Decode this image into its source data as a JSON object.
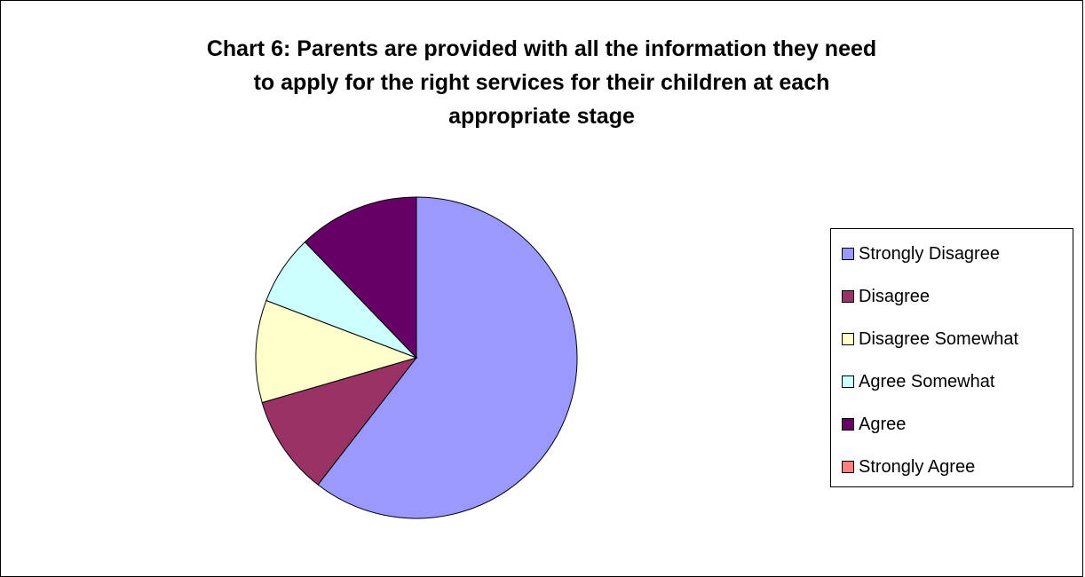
{
  "chart_data": {
    "type": "pie",
    "title_lines": [
      "Chart 6: Parents are provided with all the information they need",
      "to apply for the right services for their children at each",
      "appropriate stage"
    ],
    "slices": [
      {
        "label": "Strongly Disagree",
        "value": 60.5,
        "color": "#9999FF"
      },
      {
        "label": "Disagree",
        "value": 10,
        "color": "#993366"
      },
      {
        "label": "Disagree Somewhat",
        "value": 10.3,
        "color": "#FFFFCC"
      },
      {
        "label": "Agree Somewhat",
        "value": 7,
        "color": "#CCFFFF"
      },
      {
        "label": "Agree",
        "value": 12.2,
        "color": "#660066"
      },
      {
        "label": "Strongly Agree",
        "value": 0,
        "color": "#FF8080"
      }
    ],
    "start": "top",
    "direction": "clockwise",
    "legend_position": "right"
  }
}
